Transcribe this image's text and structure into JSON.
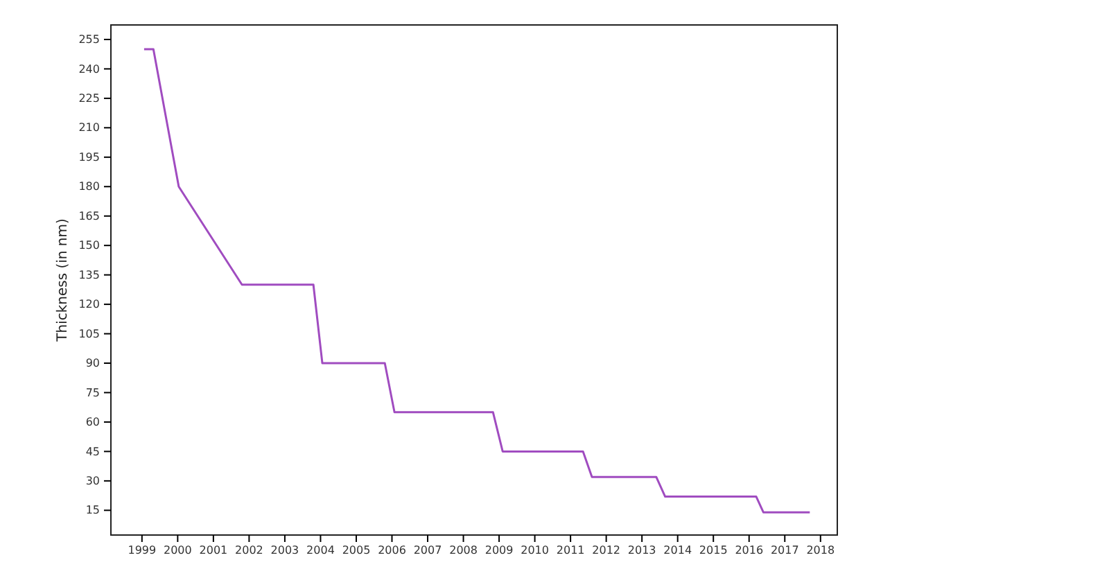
{
  "chart_data": {
    "type": "line",
    "ylabel": "Thickness (in nm)",
    "x": [
      1999.06,
      1999.32,
      2000.03,
      2001.8,
      2003.8,
      2004.05,
      2005.8,
      2006.07,
      2008.83,
      2009.1,
      2011.35,
      2011.6,
      2013.4,
      2013.65,
      2016.2,
      2016.4,
      2017.7
    ],
    "series": [
      {
        "color": "#a04cc0",
        "values": [
          250,
          250,
          180,
          130,
          130,
          90,
          90,
          65,
          65,
          45,
          45,
          32,
          32,
          22,
          22,
          14,
          14
        ]
      }
    ],
    "xlim": [
      1998.13,
      2018.47
    ],
    "ylim": [
      2.4,
      262.4
    ],
    "xticks": [
      1999,
      2000,
      2001,
      2002,
      2003,
      2004,
      2005,
      2006,
      2007,
      2008,
      2009,
      2010,
      2011,
      2012,
      2013,
      2014,
      2015,
      2016,
      2017,
      2018
    ],
    "yticks": [
      15,
      30,
      45,
      60,
      75,
      90,
      105,
      120,
      135,
      150,
      165,
      180,
      195,
      210,
      225,
      240,
      255
    ],
    "grid": false
  }
}
